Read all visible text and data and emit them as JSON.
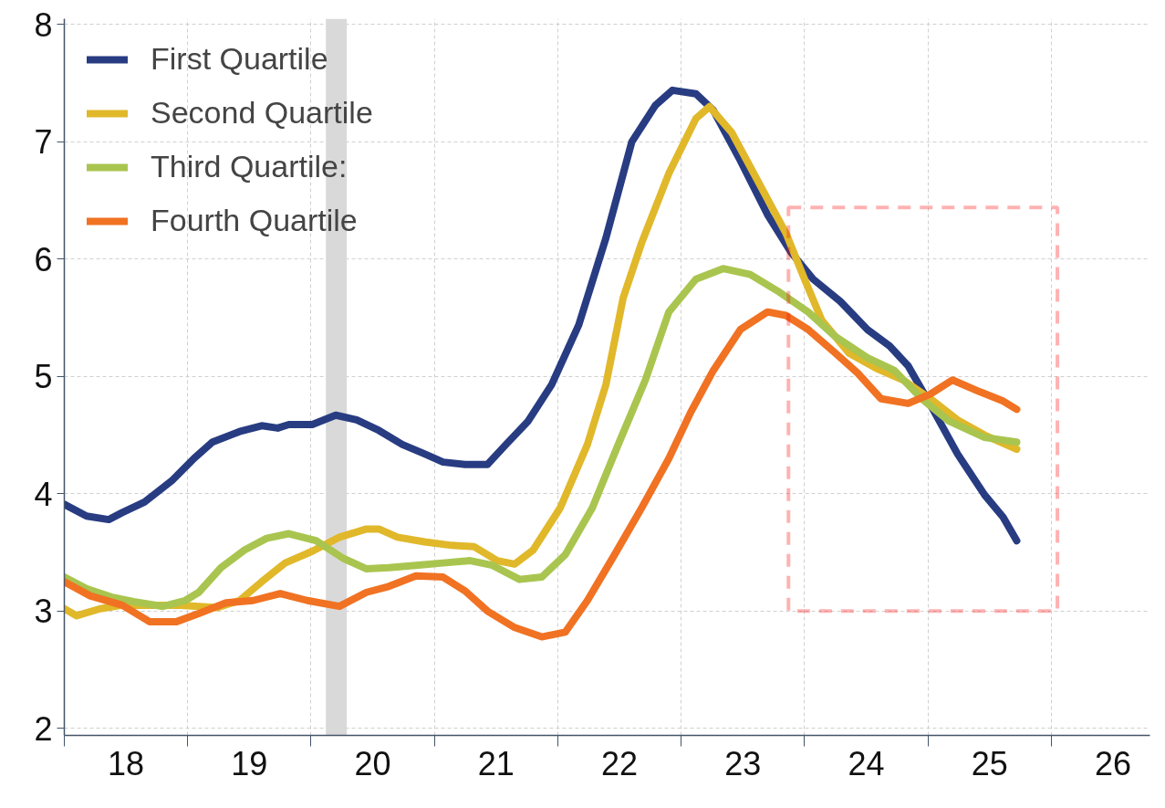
{
  "chart_data": {
    "type": "line",
    "xlim": [
      17.5,
      26.3
    ],
    "ylim": [
      1.94,
      8.05
    ],
    "yticks": [
      2,
      3,
      4,
      5,
      6,
      7,
      8
    ],
    "xticks": [
      {
        "value": 17.5,
        "label": null
      },
      18,
      {
        "value": 18.5,
        "label": null
      },
      19,
      {
        "value": 19.5,
        "label": null
      },
      20,
      {
        "value": 20.5,
        "label": null
      },
      21,
      {
        "value": 21.5,
        "label": null
      },
      22,
      {
        "value": 22.5,
        "label": null
      },
      23,
      {
        "value": 23.5,
        "label": null
      },
      24,
      {
        "value": 24.5,
        "label": null
      },
      25,
      {
        "value": 25.5,
        "label": null
      },
      26
    ],
    "grid": true,
    "legend": "top left",
    "line_style": "solid",
    "bands": [
      {
        "axis": "x",
        "from": 19.62,
        "to": 19.79,
        "color": "#d9d9d9"
      }
    ],
    "series": [
      {
        "name": "First Quartile",
        "color": "#283c82",
        "x": [
          17.5,
          17.68,
          17.86,
          17.97,
          18.15,
          18.37,
          18.55,
          18.7,
          18.92,
          19.1,
          19.23,
          19.32,
          19.51,
          19.7,
          19.87,
          20.05,
          20.24,
          20.42,
          20.57,
          20.75,
          20.93,
          21.08,
          21.26,
          21.45,
          21.67,
          21.89,
          22.1,
          22.29,
          22.43,
          22.62,
          22.76,
          22.98,
          23.2,
          23.39,
          23.57,
          23.79,
          24.01,
          24.19,
          24.34,
          24.52,
          24.74,
          24.96,
          25.11,
          25.22
        ],
        "values": [
          3.91,
          3.81,
          3.78,
          3.84,
          3.93,
          4.11,
          4.3,
          4.44,
          4.53,
          4.58,
          4.56,
          4.59,
          4.59,
          4.67,
          4.63,
          4.54,
          4.42,
          4.34,
          4.27,
          4.25,
          4.25,
          4.42,
          4.62,
          4.93,
          5.44,
          6.18,
          7.0,
          7.31,
          7.44,
          7.41,
          7.27,
          6.84,
          6.38,
          6.06,
          5.83,
          5.64,
          5.4,
          5.26,
          5.09,
          4.76,
          4.34,
          3.99,
          3.8,
          3.6
        ]
      },
      {
        "name": "Second Quartile",
        "color": "#e0b82a",
        "x": [
          17.5,
          17.6,
          17.79,
          17.97,
          18.22,
          18.44,
          18.74,
          18.92,
          19.1,
          19.29,
          19.51,
          19.73,
          19.95,
          20.05,
          20.2,
          20.42,
          20.64,
          20.82,
          21.01,
          21.15,
          21.3,
          21.52,
          21.74,
          21.89,
          22.03,
          22.18,
          22.4,
          22.62,
          22.73,
          22.91,
          23.13,
          23.35,
          23.5,
          23.64,
          23.86,
          24.08,
          24.3,
          24.52,
          24.74,
          24.96,
          25.22
        ],
        "values": [
          3.02,
          2.96,
          3.02,
          3.05,
          3.05,
          3.05,
          3.03,
          3.09,
          3.25,
          3.41,
          3.51,
          3.63,
          3.7,
          3.7,
          3.63,
          3.59,
          3.56,
          3.55,
          3.43,
          3.4,
          3.52,
          3.88,
          4.42,
          4.93,
          5.67,
          6.14,
          6.73,
          7.2,
          7.3,
          7.08,
          6.65,
          6.22,
          5.83,
          5.48,
          5.2,
          5.07,
          4.97,
          4.81,
          4.63,
          4.5,
          4.38
        ]
      },
      {
        "name": "Third Quartile:",
        "color": "#a9c54f",
        "x": [
          17.5,
          17.68,
          17.88,
          18.06,
          18.3,
          18.48,
          18.59,
          18.77,
          18.96,
          19.14,
          19.32,
          19.54,
          19.76,
          19.95,
          20.13,
          20.35,
          20.57,
          20.79,
          20.97,
          21.19,
          21.37,
          21.56,
          21.78,
          21.99,
          22.21,
          22.4,
          22.62,
          22.84,
          23.06,
          23.28,
          23.53,
          23.75,
          24.01,
          24.23,
          24.45,
          24.67,
          24.96,
          25.22
        ],
        "values": [
          3.29,
          3.19,
          3.12,
          3.08,
          3.04,
          3.09,
          3.16,
          3.37,
          3.52,
          3.62,
          3.66,
          3.6,
          3.45,
          3.36,
          3.37,
          3.39,
          3.41,
          3.43,
          3.39,
          3.27,
          3.29,
          3.48,
          3.88,
          4.42,
          4.97,
          5.55,
          5.83,
          5.92,
          5.87,
          5.73,
          5.55,
          5.34,
          5.16,
          5.05,
          4.81,
          4.62,
          4.48,
          4.44
        ]
      },
      {
        "name": "Fourth Quartile",
        "color": "#f07222",
        "x": [
          17.5,
          17.71,
          17.97,
          18.19,
          18.41,
          18.59,
          18.81,
          19.03,
          19.25,
          19.47,
          19.73,
          19.95,
          20.13,
          20.35,
          20.57,
          20.75,
          20.93,
          21.15,
          21.37,
          21.56,
          21.74,
          21.96,
          22.18,
          22.4,
          22.58,
          22.76,
          22.98,
          23.2,
          23.35,
          23.53,
          23.75,
          23.93,
          24.12,
          24.34,
          24.52,
          24.7,
          24.92,
          25.11,
          25.22
        ],
        "values": [
          3.25,
          3.13,
          3.05,
          2.91,
          2.91,
          2.98,
          3.07,
          3.09,
          3.15,
          3.09,
          3.04,
          3.16,
          3.21,
          3.3,
          3.29,
          3.17,
          3.0,
          2.86,
          2.78,
          2.82,
          3.09,
          3.48,
          3.88,
          4.3,
          4.7,
          5.05,
          5.4,
          5.55,
          5.52,
          5.4,
          5.2,
          5.03,
          4.81,
          4.77,
          4.85,
          4.97,
          4.87,
          4.79,
          4.72
        ]
      }
    ]
  }
}
